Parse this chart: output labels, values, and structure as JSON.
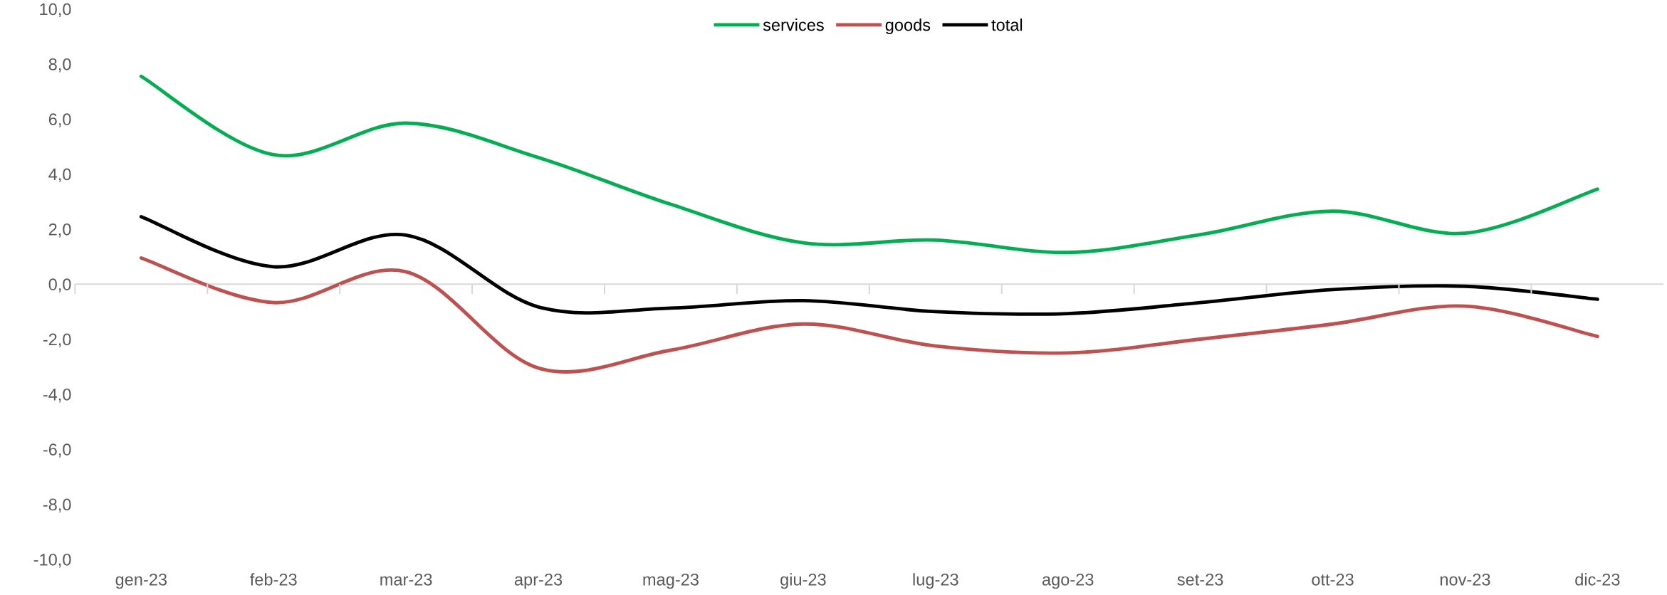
{
  "chart_data": {
    "type": "line",
    "categories": [
      "gen-23",
      "feb-23",
      "mar-23",
      "apr-23",
      "mag-23",
      "giu-23",
      "lug-23",
      "ago-23",
      "set-23",
      "ott-23",
      "nov-23",
      "dic-23"
    ],
    "series": [
      {
        "name": "services",
        "color": "#00b050",
        "values": [
          7.55,
          4.7,
          5.85,
          4.6,
          2.9,
          1.5,
          1.6,
          1.15,
          1.8,
          2.65,
          1.85,
          3.45
        ]
      },
      {
        "name": "goods",
        "color": "#c0504d",
        "values": [
          0.95,
          -0.67,
          0.45,
          -3.05,
          -2.4,
          -1.45,
          -2.25,
          -2.5,
          -2.0,
          -1.45,
          -0.8,
          -1.9
        ]
      },
      {
        "name": "total",
        "color": "#000000",
        "values": [
          2.45,
          0.63,
          1.78,
          -0.83,
          -0.87,
          -0.6,
          -1.0,
          -1.07,
          -0.67,
          -0.2,
          -0.08,
          -0.55
        ]
      }
    ],
    "ylim": [
      -10,
      10
    ],
    "yticks": [
      {
        "value": -10,
        "label": "-10,0"
      },
      {
        "value": -8,
        "label": "-8,0"
      },
      {
        "value": -6,
        "label": "-6,0"
      },
      {
        "value": -4,
        "label": "-4,0"
      },
      {
        "value": -2,
        "label": "-2,0"
      },
      {
        "value": 0,
        "label": "0,0"
      },
      {
        "value": 2,
        "label": "2,0"
      },
      {
        "value": 4,
        "label": "4,0"
      },
      {
        "value": 6,
        "label": "6,0"
      },
      {
        "value": 8,
        "label": "8,0"
      },
      {
        "value": 10,
        "label": "10,0"
      }
    ],
    "ref_lines": [
      {
        "axis": "y",
        "value": 0,
        "color": "#d9d9d9"
      }
    ],
    "grid": false,
    "legend": "top",
    "marker": "none",
    "line_style": "solid"
  }
}
